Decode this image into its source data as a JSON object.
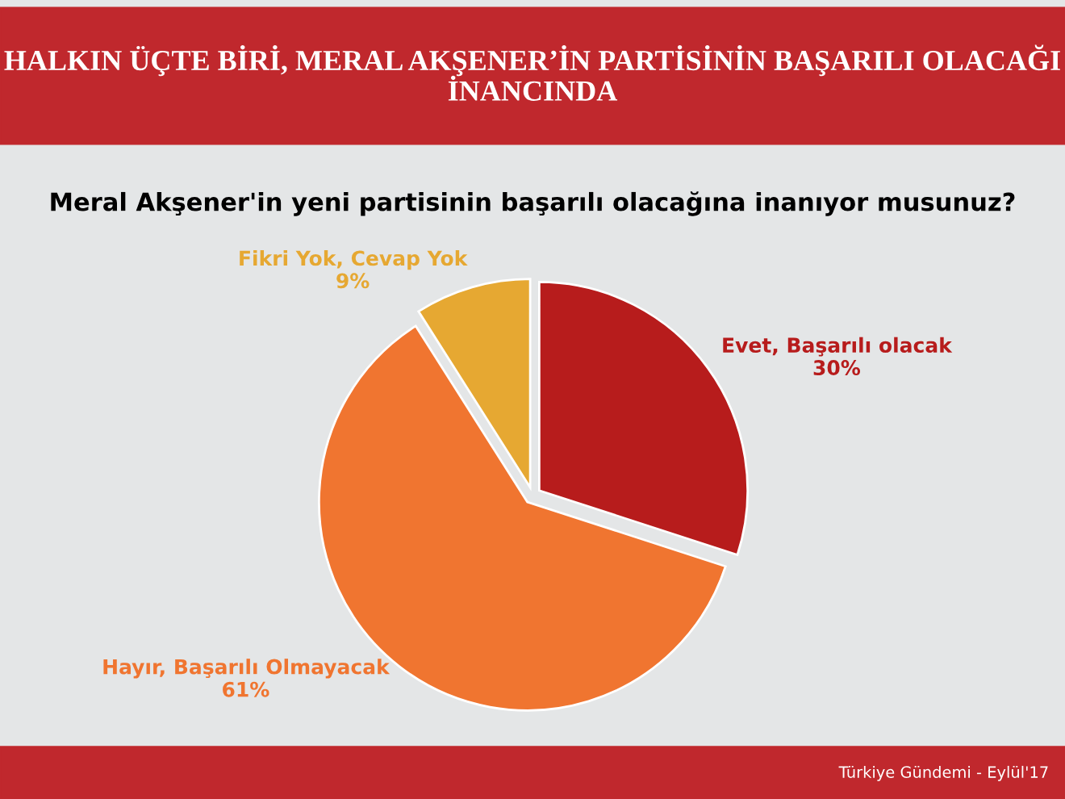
{
  "chart_data": {
    "type": "pie",
    "title": "HALKIN ÜÇTE BİRİ, MERAL AKŞENER’İN PARTİSİNİN BAŞARILI OLACAĞI İNANCINDA",
    "subtitle": "Meral Akşener'in yeni partisinin başarılı olacağına inanıyor musunuz?",
    "categories": [
      "Evet, Başarılı olacak",
      "Hayır, Başarılı Olmayacak",
      "Fikri Yok, Cevap Yok"
    ],
    "values": [
      30,
      61,
      9
    ],
    "value_labels": [
      "30%",
      "61%",
      "9%"
    ],
    "colors": [
      "#b71c1c",
      "#f07530",
      "#e6a832"
    ],
    "annotations": [
      "Türkiye Gündemi - Eylül'17"
    ]
  }
}
